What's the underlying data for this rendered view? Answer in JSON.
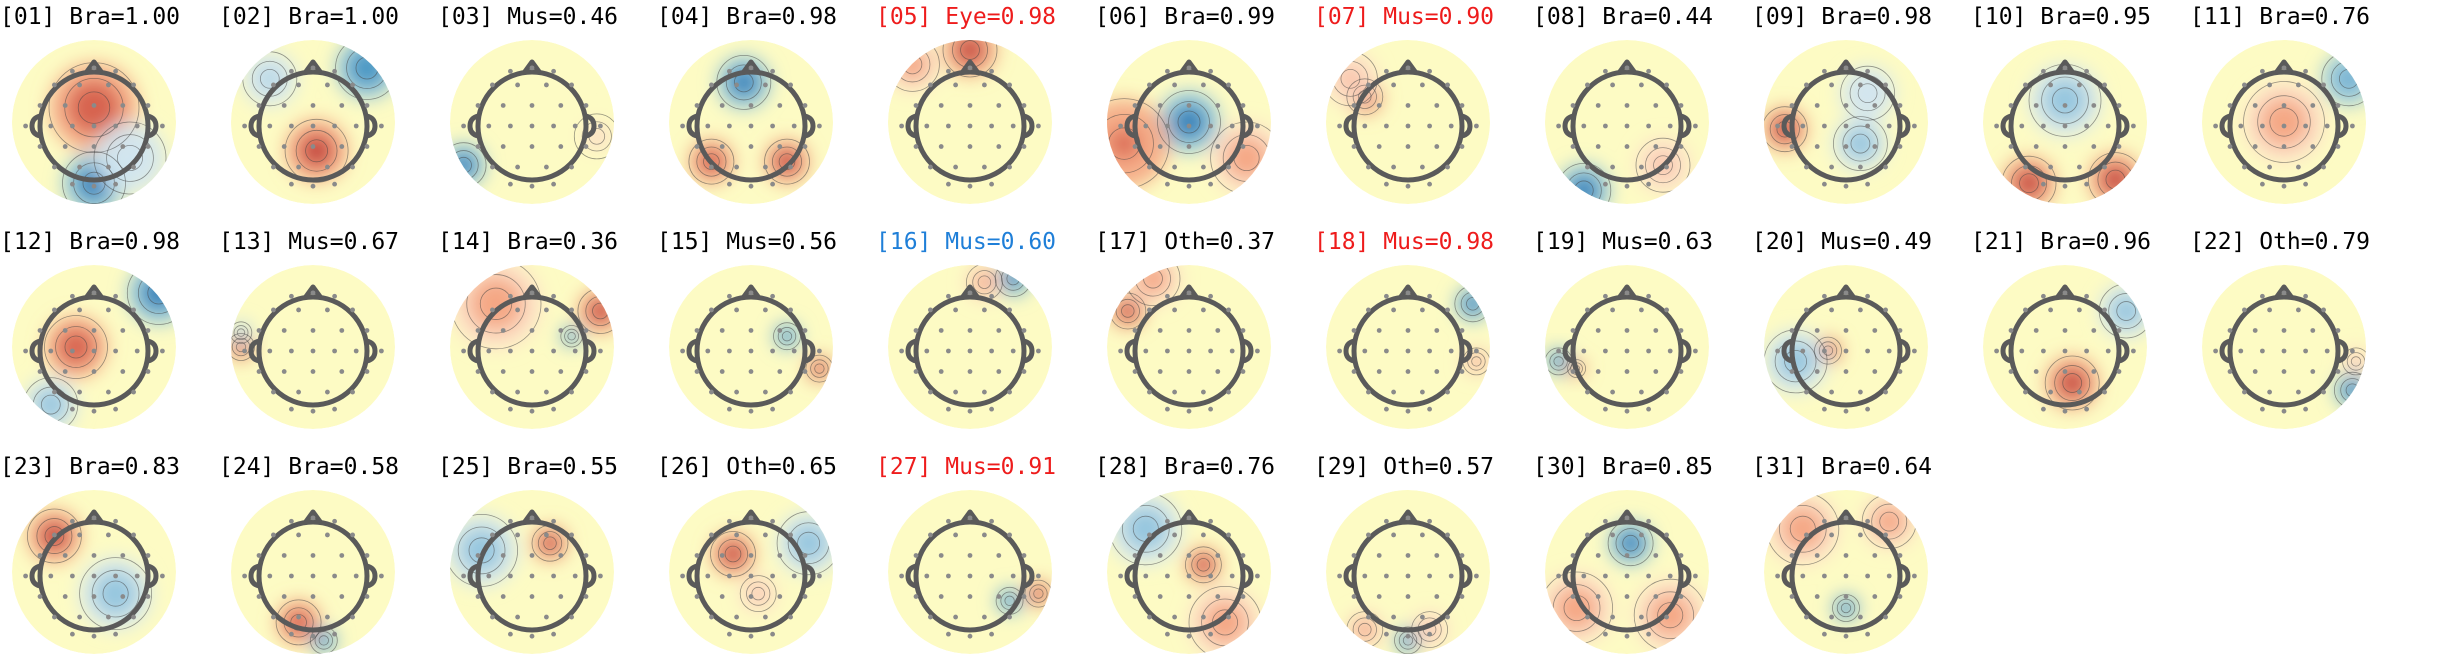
{
  "palette": {
    "default_label": "#000000",
    "rejected_label": "#ee1c1c",
    "flagged_label": "#1f7fd8",
    "head_outline": "#5a5a5a",
    "electrode": "#8a8a8a",
    "contour": "#444444",
    "colormap": [
      "#2166ac",
      "#4393c3",
      "#92c5de",
      "#d1e5f0",
      "#fdfbc4",
      "#fddbc7",
      "#f4a582",
      "#d6604d",
      "#b2182b"
    ]
  },
  "components": [
    {
      "index": "[01]",
      "label": "Bra=1.00",
      "status": "normal",
      "blobs": [
        [
          0,
          -0.2,
          0.5,
          0.8
        ],
        [
          0,
          0.85,
          0.35,
          -1
        ],
        [
          0.5,
          0.5,
          0.4,
          -0.3
        ]
      ]
    },
    {
      "index": "[02]",
      "label": "Bra=1.00",
      "status": "normal",
      "blobs": [
        [
          0.05,
          0.4,
          0.35,
          1
        ],
        [
          0.75,
          -0.75,
          0.35,
          -0.8
        ],
        [
          -0.6,
          -0.6,
          0.3,
          -0.4
        ]
      ]
    },
    {
      "index": "[03]",
      "label": "Mus=0.46",
      "status": "normal",
      "blobs": [
        [
          -0.95,
          0.6,
          0.25,
          -0.9
        ],
        [
          0.9,
          0.2,
          0.25,
          0.2
        ]
      ]
    },
    {
      "index": "[04]",
      "label": "Bra=0.98",
      "status": "normal",
      "blobs": [
        [
          -0.1,
          -0.55,
          0.3,
          -1
        ],
        [
          -0.55,
          0.55,
          0.25,
          0.8
        ],
        [
          0.5,
          0.55,
          0.25,
          0.9
        ]
      ]
    },
    {
      "index": "[05]",
      "label": "Eye=0.98",
      "status": "reject",
      "blobs": [
        [
          0,
          -1.0,
          0.3,
          1
        ],
        [
          -0.8,
          -0.8,
          0.3,
          0.6
        ]
      ]
    },
    {
      "index": "[06]",
      "label": "Bra=0.99",
      "status": "normal",
      "blobs": [
        [
          0,
          0,
          0.35,
          -1
        ],
        [
          -0.9,
          0.3,
          0.5,
          0.7
        ],
        [
          0.8,
          0.5,
          0.4,
          0.6
        ]
      ]
    },
    {
      "index": "[07]",
      "label": "Mus=0.90",
      "status": "reject",
      "blobs": [
        [
          -0.6,
          -0.35,
          0.2,
          1
        ],
        [
          -0.8,
          -0.6,
          0.3,
          0.4
        ]
      ]
    },
    {
      "index": "[08]",
      "label": "Bra=0.44",
      "status": "normal",
      "blobs": [
        [
          -0.6,
          0.95,
          0.3,
          -1
        ],
        [
          0.5,
          0.6,
          0.3,
          0.4
        ]
      ]
    },
    {
      "index": "[09]",
      "label": "Bra=0.98",
      "status": "normal",
      "blobs": [
        [
          -0.85,
          0.1,
          0.25,
          1
        ],
        [
          0.2,
          0.3,
          0.3,
          -0.6
        ],
        [
          0.3,
          -0.4,
          0.3,
          -0.3
        ]
      ]
    },
    {
      "index": "[10]",
      "label": "Bra=0.95",
      "status": "normal",
      "blobs": [
        [
          -0.5,
          0.85,
          0.3,
          0.9
        ],
        [
          0.7,
          0.8,
          0.3,
          1
        ],
        [
          0,
          -0.3,
          0.4,
          -0.5
        ]
      ]
    },
    {
      "index": "[11]",
      "label": "Bra=0.76",
      "status": "normal",
      "blobs": [
        [
          0,
          0,
          0.45,
          0.6
        ],
        [
          0.9,
          -0.6,
          0.3,
          -0.7
        ]
      ]
    },
    {
      "index": "[12]",
      "label": "Bra=0.98",
      "status": "normal",
      "blobs": [
        [
          -0.25,
          0,
          0.35,
          0.8
        ],
        [
          0.9,
          -0.75,
          0.35,
          -1
        ],
        [
          -0.6,
          0.8,
          0.3,
          -0.5
        ]
      ]
    },
    {
      "index": "[13]",
      "label": "Mus=0.67",
      "status": "normal",
      "blobs": [
        [
          -1.0,
          0,
          0.15,
          1
        ],
        [
          -1.0,
          -0.2,
          0.12,
          -0.6
        ]
      ]
    },
    {
      "index": "[14]",
      "label": "Bra=0.36",
      "status": "normal",
      "blobs": [
        [
          0.55,
          -0.15,
          0.12,
          -1
        ],
        [
          0.95,
          -0.5,
          0.25,
          0.9
        ],
        [
          -0.5,
          -0.6,
          0.5,
          0.5
        ]
      ]
    },
    {
      "index": "[15]",
      "label": "Mus=0.56",
      "status": "normal",
      "blobs": [
        [
          0.5,
          -0.15,
          0.15,
          -0.8
        ],
        [
          0.95,
          0.3,
          0.15,
          1
        ]
      ]
    },
    {
      "index": "[16]",
      "label": "Mus=0.60",
      "status": "flag",
      "blobs": [
        [
          0.6,
          -0.95,
          0.2,
          -1
        ],
        [
          0.2,
          -0.9,
          0.2,
          0.5
        ]
      ]
    },
    {
      "index": "[17]",
      "label": "Oth=0.37",
      "status": "normal",
      "blobs": [
        [
          -0.85,
          -0.5,
          0.2,
          1
        ],
        [
          -0.5,
          -0.95,
          0.3,
          0.6
        ]
      ]
    },
    {
      "index": "[18]",
      "label": "Mus=0.98",
      "status": "reject",
      "blobs": [
        [
          0.9,
          -0.6,
          0.2,
          -1
        ],
        [
          0.95,
          0.2,
          0.15,
          0.5
        ]
      ]
    },
    {
      "index": "[19]",
      "label": "Mus=0.63",
      "status": "normal",
      "blobs": [
        [
          -0.95,
          0.2,
          0.15,
          -0.9
        ],
        [
          -0.7,
          0.3,
          0.1,
          0.7
        ]
      ]
    },
    {
      "index": "[20]",
      "label": "Mus=0.49",
      "status": "normal",
      "blobs": [
        [
          -0.25,
          0.05,
          0.15,
          1
        ],
        [
          -0.7,
          0.2,
          0.35,
          -0.5
        ]
      ]
    },
    {
      "index": "[21]",
      "label": "Bra=0.96",
      "status": "normal",
      "blobs": [
        [
          0.1,
          0.5,
          0.3,
          1
        ],
        [
          0.85,
          -0.5,
          0.3,
          -0.5
        ]
      ]
    },
    {
      "index": "[22]",
      "label": "Oth=0.79",
      "status": "normal",
      "blobs": [
        [
          0.95,
          0.6,
          0.2,
          -0.9
        ],
        [
          1.0,
          0.2,
          0.15,
          0.4
        ]
      ]
    },
    {
      "index": "[23]",
      "label": "Bra=0.83",
      "status": "normal",
      "blobs": [
        [
          -0.55,
          -0.5,
          0.3,
          1
        ],
        [
          0.3,
          0.3,
          0.4,
          -0.5
        ]
      ]
    },
    {
      "index": "[24]",
      "label": "Bra=0.58",
      "status": "normal",
      "blobs": [
        [
          -0.2,
          0.7,
          0.25,
          0.8
        ],
        [
          0.15,
          0.95,
          0.15,
          -1
        ]
      ]
    },
    {
      "index": "[25]",
      "label": "Bra=0.55",
      "status": "normal",
      "blobs": [
        [
          0.25,
          -0.4,
          0.2,
          1
        ],
        [
          -0.7,
          -0.3,
          0.4,
          -0.5
        ]
      ]
    },
    {
      "index": "[26]",
      "label": "Oth=0.65",
      "status": "normal",
      "blobs": [
        [
          -0.25,
          -0.25,
          0.25,
          1
        ],
        [
          0.8,
          -0.4,
          0.35,
          -0.5
        ],
        [
          0.1,
          0.3,
          0.2,
          0.4
        ]
      ]
    },
    {
      "index": "[27]",
      "label": "Mus=0.91",
      "status": "reject",
      "blobs": [
        [
          0.55,
          0.4,
          0.15,
          -0.8
        ],
        [
          0.95,
          0.3,
          0.15,
          1
        ]
      ]
    },
    {
      "index": "[28]",
      "label": "Bra=0.76",
      "status": "normal",
      "blobs": [
        [
          0.2,
          -0.1,
          0.2,
          1
        ],
        [
          -0.6,
          -0.6,
          0.4,
          -0.6
        ],
        [
          0.5,
          0.7,
          0.4,
          0.6
        ]
      ]
    },
    {
      "index": "[29]",
      "label": "Oth=0.57",
      "status": "normal",
      "blobs": [
        [
          0,
          0.95,
          0.15,
          -0.9
        ],
        [
          -0.6,
          0.8,
          0.2,
          0.5
        ],
        [
          0.3,
          0.8,
          0.2,
          0.4
        ]
      ]
    },
    {
      "index": "[30]",
      "label": "Bra=0.85",
      "status": "normal",
      "blobs": [
        [
          0.05,
          -0.4,
          0.25,
          -1
        ],
        [
          -0.7,
          0.5,
          0.4,
          0.5
        ],
        [
          0.6,
          0.6,
          0.4,
          0.5
        ]
      ]
    },
    {
      "index": "[31]",
      "label": "Bra=0.64",
      "status": "normal",
      "blobs": [
        [
          0,
          0.5,
          0.15,
          -1
        ],
        [
          -0.6,
          -0.6,
          0.4,
          0.6
        ],
        [
          0.6,
          -0.7,
          0.3,
          0.5
        ]
      ]
    }
  ]
}
